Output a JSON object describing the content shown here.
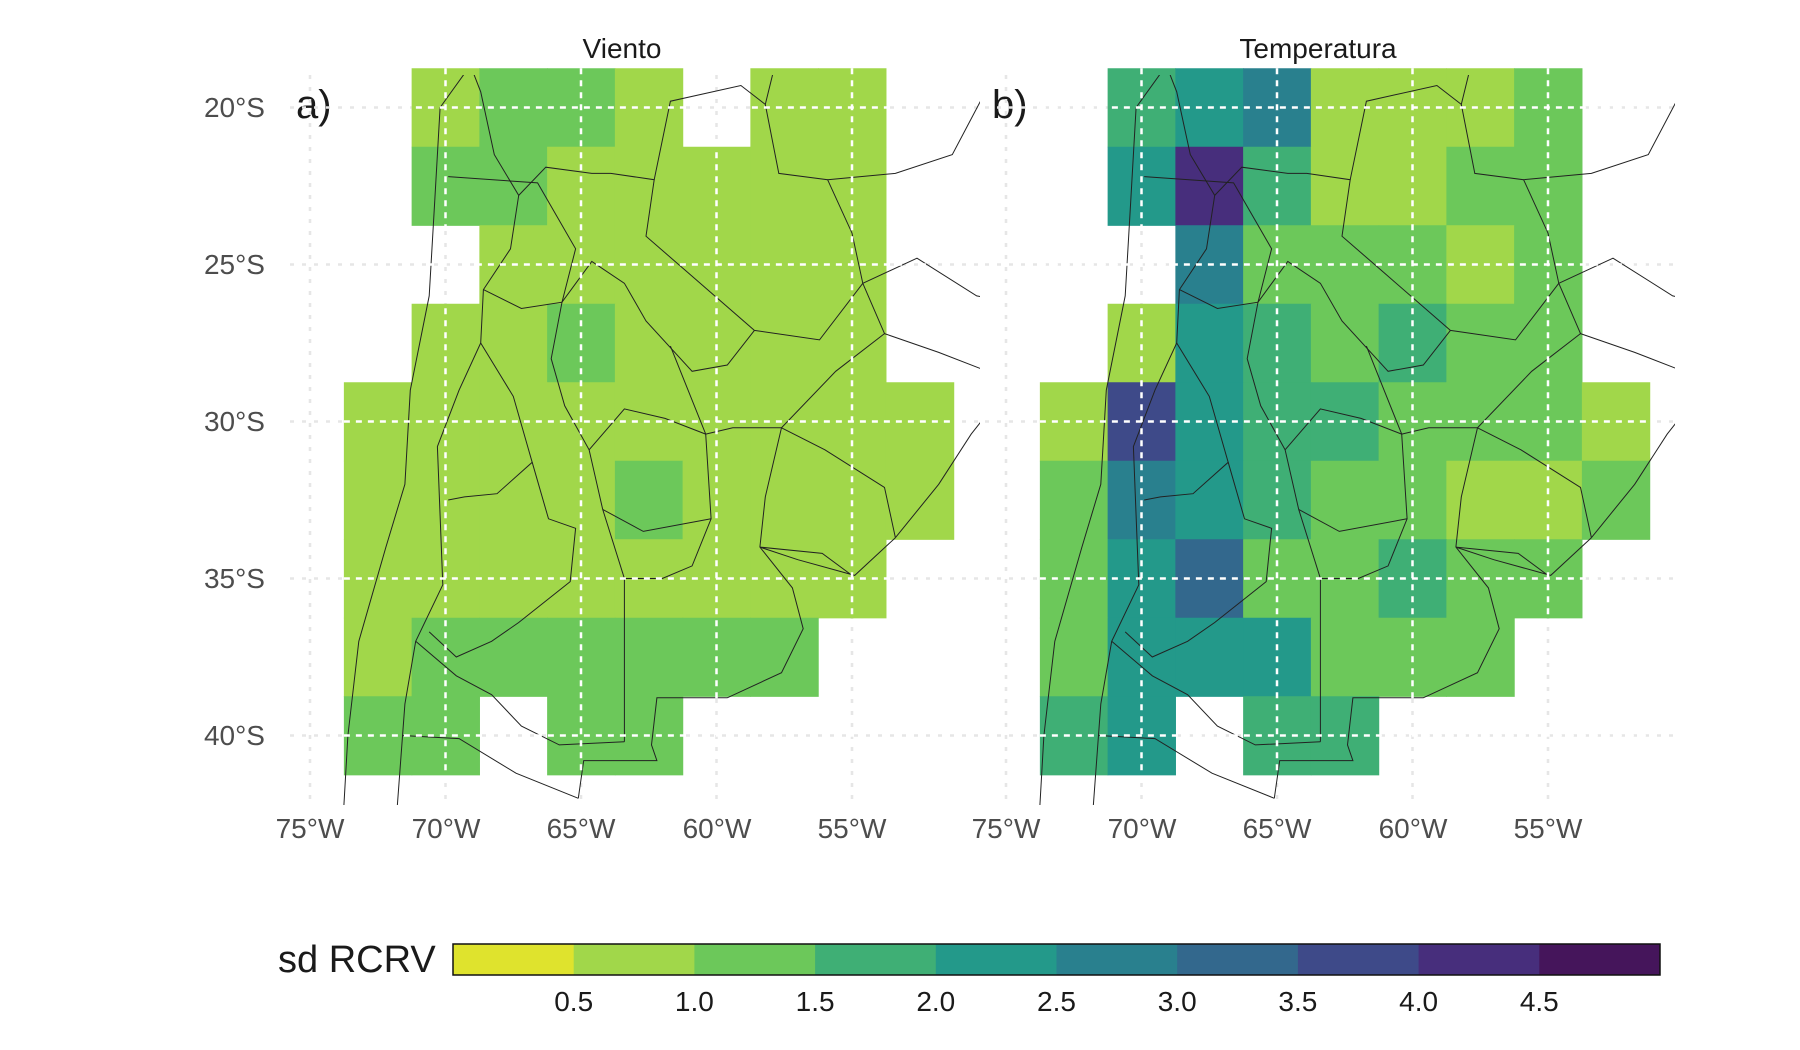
{
  "colors": {
    "palette": [
      "#dfe32d",
      "#a1d74a",
      "#6cc85a",
      "#3faf75",
      "#23998a",
      "#29808e",
      "#33688d",
      "#3e4a89",
      "#472e7c",
      "#45155b"
    ],
    "grid": "#ffffff",
    "background_grid": "#e6e6e6",
    "border_line": "#222222"
  },
  "panels": [
    {
      "id": "a",
      "tag": "a)",
      "title": "Viento",
      "lat_labels": [
        "20°S",
        "25°S",
        "30°S",
        "35°S",
        "40°S"
      ],
      "lon_labels": [
        "75°W",
        "70°W",
        "65°W",
        "60°W",
        "55°W"
      ],
      "cells": [
        {
          "lon": -70.0,
          "lat": -20.0,
          "v": 0.9
        },
        {
          "lon": -67.5,
          "lat": -20.0,
          "v": 1.1
        },
        {
          "lon": -65.0,
          "lat": -20.0,
          "v": 1.0
        },
        {
          "lon": -62.5,
          "lat": -20.0,
          "v": 0.9
        },
        {
          "lon": -57.5,
          "lat": -20.0,
          "v": 0.6
        },
        {
          "lon": -55.0,
          "lat": -20.0,
          "v": 0.8
        },
        {
          "lon": -70.0,
          "lat": -22.5,
          "v": 1.1
        },
        {
          "lon": -67.5,
          "lat": -22.5,
          "v": 1.0
        },
        {
          "lon": -65.0,
          "lat": -22.5,
          "v": 0.8
        },
        {
          "lon": -62.5,
          "lat": -22.5,
          "v": 0.7
        },
        {
          "lon": -60.0,
          "lat": -22.5,
          "v": 0.7
        },
        {
          "lon": -57.5,
          "lat": -22.5,
          "v": 0.7
        },
        {
          "lon": -55.0,
          "lat": -22.5,
          "v": 0.8
        },
        {
          "lon": -67.5,
          "lat": -25.0,
          "v": 0.6
        },
        {
          "lon": -65.0,
          "lat": -25.0,
          "v": 0.9
        },
        {
          "lon": -62.5,
          "lat": -25.0,
          "v": 0.8
        },
        {
          "lon": -60.0,
          "lat": -25.0,
          "v": 0.8
        },
        {
          "lon": -57.5,
          "lat": -25.0,
          "v": 0.8
        },
        {
          "lon": -55.0,
          "lat": -25.0,
          "v": 0.8
        },
        {
          "lon": -70.0,
          "lat": -27.5,
          "v": 0.9
        },
        {
          "lon": -67.5,
          "lat": -27.5,
          "v": 0.9
        },
        {
          "lon": -65.0,
          "lat": -27.5,
          "v": 1.1
        },
        {
          "lon": -62.5,
          "lat": -27.5,
          "v": 0.9
        },
        {
          "lon": -60.0,
          "lat": -27.5,
          "v": 0.9
        },
        {
          "lon": -57.5,
          "lat": -27.5,
          "v": 0.9
        },
        {
          "lon": -55.0,
          "lat": -27.5,
          "v": 0.9
        },
        {
          "lon": -72.5,
          "lat": -30.0,
          "v": 0.8
        },
        {
          "lon": -70.0,
          "lat": -30.0,
          "v": 0.8
        },
        {
          "lon": -67.5,
          "lat": -30.0,
          "v": 0.9
        },
        {
          "lon": -65.0,
          "lat": -30.0,
          "v": 0.9
        },
        {
          "lon": -62.5,
          "lat": -30.0,
          "v": 0.9
        },
        {
          "lon": -60.0,
          "lat": -30.0,
          "v": 0.9
        },
        {
          "lon": -57.5,
          "lat": -30.0,
          "v": 0.9
        },
        {
          "lon": -55.0,
          "lat": -30.0,
          "v": 0.8
        },
        {
          "lon": -52.5,
          "lat": -30.0,
          "v": 0.7
        },
        {
          "lon": -72.5,
          "lat": -32.5,
          "v": 0.9
        },
        {
          "lon": -70.0,
          "lat": -32.5,
          "v": 0.8
        },
        {
          "lon": -67.5,
          "lat": -32.5,
          "v": 0.9
        },
        {
          "lon": -65.0,
          "lat": -32.5,
          "v": 0.9
        },
        {
          "lon": -62.5,
          "lat": -32.5,
          "v": 1.0
        },
        {
          "lon": -60.0,
          "lat": -32.5,
          "v": 0.9
        },
        {
          "lon": -57.5,
          "lat": -32.5,
          "v": 0.9
        },
        {
          "lon": -55.0,
          "lat": -32.5,
          "v": 0.8
        },
        {
          "lon": -52.5,
          "lat": -32.5,
          "v": 0.9
        },
        {
          "lon": -72.5,
          "lat": -35.0,
          "v": 0.9
        },
        {
          "lon": -70.0,
          "lat": -35.0,
          "v": 0.9
        },
        {
          "lon": -67.5,
          "lat": -35.0,
          "v": 0.9
        },
        {
          "lon": -65.0,
          "lat": -35.0,
          "v": 0.9
        },
        {
          "lon": -62.5,
          "lat": -35.0,
          "v": 0.9
        },
        {
          "lon": -60.0,
          "lat": -35.0,
          "v": 0.9
        },
        {
          "lon": -57.5,
          "lat": -35.0,
          "v": 0.9
        },
        {
          "lon": -55.0,
          "lat": -35.0,
          "v": 0.9
        },
        {
          "lon": -72.5,
          "lat": -37.5,
          "v": 0.9
        },
        {
          "lon": -70.0,
          "lat": -37.5,
          "v": 1.0
        },
        {
          "lon": -67.5,
          "lat": -37.5,
          "v": 1.0
        },
        {
          "lon": -65.0,
          "lat": -37.5,
          "v": 1.0
        },
        {
          "lon": -62.5,
          "lat": -37.5,
          "v": 1.0
        },
        {
          "lon": -60.0,
          "lat": -37.5,
          "v": 1.0
        },
        {
          "lon": -57.5,
          "lat": -37.5,
          "v": 1.2
        },
        {
          "lon": -72.5,
          "lat": -40.0,
          "v": 1.1
        },
        {
          "lon": -70.0,
          "lat": -40.0,
          "v": 1.1
        },
        {
          "lon": -65.0,
          "lat": -40.0,
          "v": 1.1
        },
        {
          "lon": -62.5,
          "lat": -40.0,
          "v": 1.1
        }
      ]
    },
    {
      "id": "b",
      "tag": "b)",
      "title": "Temperatura",
      "lat_labels": [
        "20°S",
        "25°S",
        "30°S",
        "35°S",
        "40°S"
      ],
      "lon_labels": [
        "75°W",
        "70°W",
        "65°W",
        "60°W",
        "55°W"
      ],
      "cells": [
        {
          "lon": -70.0,
          "lat": -20.0,
          "v": 1.6
        },
        {
          "lon": -67.5,
          "lat": -20.0,
          "v": 2.2
        },
        {
          "lon": -65.0,
          "lat": -20.0,
          "v": 2.7
        },
        {
          "lon": -62.5,
          "lat": -20.0,
          "v": 0.9
        },
        {
          "lon": -60.0,
          "lat": -20.0,
          "v": 0.9
        },
        {
          "lon": -57.5,
          "lat": -20.0,
          "v": 0.7
        },
        {
          "lon": -55.0,
          "lat": -20.0,
          "v": 1.0
        },
        {
          "lon": -70.0,
          "lat": -22.5,
          "v": 2.2
        },
        {
          "lon": -67.5,
          "lat": -22.5,
          "v": 4.3
        },
        {
          "lon": -65.0,
          "lat": -22.5,
          "v": 1.8
        },
        {
          "lon": -62.5,
          "lat": -22.5,
          "v": 0.8
        },
        {
          "lon": -60.0,
          "lat": -22.5,
          "v": 0.8
        },
        {
          "lon": -57.5,
          "lat": -22.5,
          "v": 1.2
        },
        {
          "lon": -55.0,
          "lat": -22.5,
          "v": 1.0
        },
        {
          "lon": -67.5,
          "lat": -25.0,
          "v": 2.7
        },
        {
          "lon": -65.0,
          "lat": -25.0,
          "v": 1.4
        },
        {
          "lon": -62.5,
          "lat": -25.0,
          "v": 1.3
        },
        {
          "lon": -60.0,
          "lat": -25.0,
          "v": 1.1
        },
        {
          "lon": -57.5,
          "lat": -25.0,
          "v": 0.9
        },
        {
          "lon": -55.0,
          "lat": -25.0,
          "v": 1.1
        },
        {
          "lon": -70.0,
          "lat": -27.5,
          "v": 0.7
        },
        {
          "lon": -67.5,
          "lat": -27.5,
          "v": 2.0
        },
        {
          "lon": -65.0,
          "lat": -27.5,
          "v": 1.5
        },
        {
          "lon": -62.5,
          "lat": -27.5,
          "v": 1.4
        },
        {
          "lon": -60.0,
          "lat": -27.5,
          "v": 1.5
        },
        {
          "lon": -57.5,
          "lat": -27.5,
          "v": 1.2
        },
        {
          "lon": -55.0,
          "lat": -27.5,
          "v": 1.1
        },
        {
          "lon": -72.5,
          "lat": -30.0,
          "v": 0.9
        },
        {
          "lon": -70.0,
          "lat": -30.0,
          "v": 3.7
        },
        {
          "lon": -67.5,
          "lat": -30.0,
          "v": 2.0
        },
        {
          "lon": -65.0,
          "lat": -30.0,
          "v": 1.6
        },
        {
          "lon": -62.5,
          "lat": -30.0,
          "v": 1.5
        },
        {
          "lon": -60.0,
          "lat": -30.0,
          "v": 1.3
        },
        {
          "lon": -57.5,
          "lat": -30.0,
          "v": 1.1
        },
        {
          "lon": -55.0,
          "lat": -30.0,
          "v": 1.1
        },
        {
          "lon": -52.5,
          "lat": -30.0,
          "v": 0.9
        },
        {
          "lon": -72.5,
          "lat": -32.5,
          "v": 1.2
        },
        {
          "lon": -70.0,
          "lat": -32.5,
          "v": 2.8
        },
        {
          "lon": -67.5,
          "lat": -32.5,
          "v": 2.0
        },
        {
          "lon": -65.0,
          "lat": -32.5,
          "v": 1.6
        },
        {
          "lon": -62.5,
          "lat": -32.5,
          "v": 1.3
        },
        {
          "lon": -60.0,
          "lat": -32.5,
          "v": 1.2
        },
        {
          "lon": -57.5,
          "lat": -32.5,
          "v": 0.9
        },
        {
          "lon": -55.0,
          "lat": -32.5,
          "v": 0.8
        },
        {
          "lon": -52.5,
          "lat": -32.5,
          "v": 1.1
        },
        {
          "lon": -72.5,
          "lat": -35.0,
          "v": 1.2
        },
        {
          "lon": -70.0,
          "lat": -35.0,
          "v": 2.4
        },
        {
          "lon": -67.5,
          "lat": -35.0,
          "v": 3.4
        },
        {
          "lon": -65.0,
          "lat": -35.0,
          "v": 1.4
        },
        {
          "lon": -62.5,
          "lat": -35.0,
          "v": 1.3
        },
        {
          "lon": -60.0,
          "lat": -35.0,
          "v": 1.5
        },
        {
          "lon": -57.5,
          "lat": -35.0,
          "v": 1.2
        },
        {
          "lon": -55.0,
          "lat": -35.0,
          "v": 1.1
        },
        {
          "lon": -72.5,
          "lat": -37.5,
          "v": 1.0
        },
        {
          "lon": -70.0,
          "lat": -37.5,
          "v": 2.4
        },
        {
          "lon": -67.5,
          "lat": -37.5,
          "v": 2.1
        },
        {
          "lon": -65.0,
          "lat": -37.5,
          "v": 2.3
        },
        {
          "lon": -62.5,
          "lat": -37.5,
          "v": 1.2
        },
        {
          "lon": -60.0,
          "lat": -37.5,
          "v": 1.2
        },
        {
          "lon": -57.5,
          "lat": -37.5,
          "v": 1.4
        },
        {
          "lon": -72.5,
          "lat": -40.0,
          "v": 1.6
        },
        {
          "lon": -70.0,
          "lat": -40.0,
          "v": 2.2
        },
        {
          "lon": -65.0,
          "lat": -40.0,
          "v": 1.6
        },
        {
          "lon": -62.5,
          "lat": -40.0,
          "v": 1.5
        }
      ]
    }
  ],
  "legend": {
    "title": "sd RCRV",
    "breaks": [
      0,
      0.5,
      1.0,
      1.5,
      2.0,
      2.5,
      3.0,
      3.5,
      4.0,
      4.5,
      5.0
    ],
    "tick_labels": [
      "0.5",
      "1.0",
      "1.5",
      "2.0",
      "2.5",
      "3.0",
      "3.5",
      "4.0",
      "4.5"
    ]
  }
}
